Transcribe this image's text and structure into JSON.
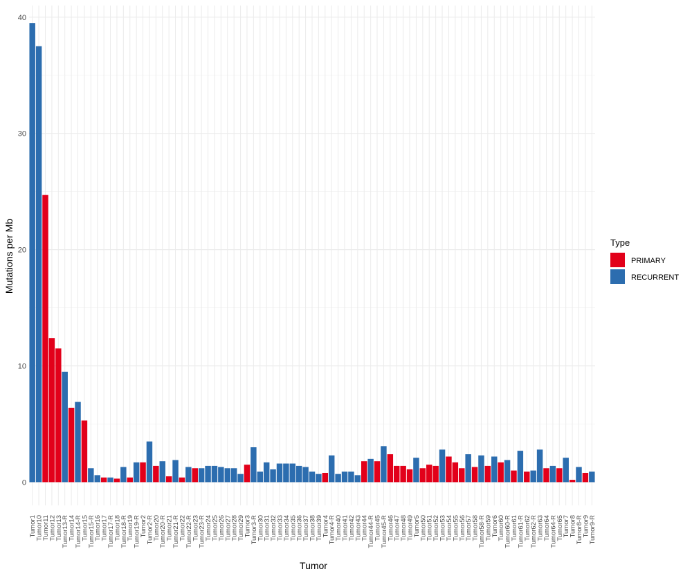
{
  "chart_data": {
    "type": "bar",
    "title": "",
    "xlabel": "Tumor",
    "ylabel": "Mutations per Mb",
    "ylim": [
      -2,
      41
    ],
    "yticks": [
      0,
      10,
      20,
      30,
      40
    ],
    "grid": true,
    "legend": {
      "title": "Type",
      "placement": "right",
      "entries": [
        {
          "label": "PRIMARY",
          "color": "#E2001A"
        },
        {
          "label": "RECURRENT",
          "color": "#2C6DAF"
        }
      ]
    },
    "categories": [
      "Tumor1",
      "Tumor10",
      "Tumor11",
      "Tumor12",
      "Tumor13",
      "Tumor13-R",
      "Tumor14",
      "Tumor14-R",
      "Tumor15",
      "Tumor15-R",
      "Tumor16",
      "Tumor17",
      "Tumor17-R",
      "Tumor18",
      "Tumor18-R",
      "Tumor19",
      "Tumor19-R",
      "Tumor2",
      "Tumor2-R",
      "Tumor20",
      "Tumor20-R",
      "Tumor21",
      "Tumor21-R",
      "Tumor22",
      "Tumor22-R",
      "Tumor23",
      "Tumor23-R",
      "Tumor24",
      "Tumor25",
      "Tumor26",
      "Tumor27",
      "Tumor28",
      "Tumor29",
      "Tumor3",
      "Tumor3-R",
      "Tumor30",
      "Tumor31",
      "Tumor32",
      "Tumor33",
      "Tumor34",
      "Tumor35",
      "Tumor36",
      "Tumor37",
      "Tumor38",
      "Tumor39",
      "Tumor4",
      "Tumor4-R",
      "Tumor40",
      "Tumor41",
      "Tumor42",
      "Tumor43",
      "Tumor44",
      "Tumor44-R",
      "Tumor45",
      "Tumor45-R",
      "Tumor46",
      "Tumor47",
      "Tumor48",
      "Tumor49",
      "Tumor5",
      "Tumor50",
      "Tumor51",
      "Tumor52",
      "Tumor53",
      "Tumor54",
      "Tumor55",
      "Tumor56",
      "Tumor57",
      "Tumor58",
      "Tumor58-R",
      "Tumor59",
      "Tumor6",
      "Tumor60",
      "Tumor60-R",
      "Tumor61",
      "Tumor61-R",
      "Tumor62",
      "Tumor62-R",
      "Tumor63",
      "Tumor64",
      "Tumor64-R",
      "Tumor65",
      "Tumor7",
      "Tumor8",
      "Tumor8-R",
      "Tumor9",
      "Tumor9-R"
    ],
    "values": [
      39.5,
      37.5,
      24.7,
      12.4,
      11.5,
      9.5,
      6.4,
      6.9,
      5.3,
      1.2,
      0.6,
      0.4,
      0.4,
      0.3,
      1.3,
      0.4,
      1.7,
      1.7,
      3.5,
      1.4,
      1.8,
      0.5,
      1.9,
      0.4,
      1.3,
      1.2,
      1.2,
      1.4,
      1.4,
      1.3,
      1.2,
      1.2,
      0.7,
      1.5,
      3.0,
      0.9,
      1.7,
      1.1,
      1.6,
      1.6,
      1.6,
      1.4,
      1.3,
      0.9,
      0.7,
      0.8,
      2.3,
      0.7,
      0.9,
      0.9,
      0.6,
      1.8,
      2.0,
      1.8,
      3.1,
      2.4,
      1.4,
      1.4,
      1.1,
      2.1,
      1.2,
      1.5,
      1.4,
      2.8,
      2.2,
      1.7,
      1.2,
      2.4,
      1.3,
      2.3,
      1.4,
      2.2,
      1.7,
      1.9,
      1.0,
      2.7,
      0.9,
      1.0,
      2.8,
      1.2,
      1.4,
      1.2,
      2.1,
      0.2,
      1.3,
      0.8,
      0.9
    ],
    "types": [
      "RECURRENT",
      "RECURRENT",
      "PRIMARY",
      "PRIMARY",
      "PRIMARY",
      "RECURRENT",
      "PRIMARY",
      "RECURRENT",
      "PRIMARY",
      "RECURRENT",
      "RECURRENT",
      "PRIMARY",
      "RECURRENT",
      "PRIMARY",
      "RECURRENT",
      "PRIMARY",
      "RECURRENT",
      "PRIMARY",
      "RECURRENT",
      "PRIMARY",
      "RECURRENT",
      "PRIMARY",
      "RECURRENT",
      "PRIMARY",
      "RECURRENT",
      "PRIMARY",
      "RECURRENT",
      "RECURRENT",
      "RECURRENT",
      "RECURRENT",
      "RECURRENT",
      "RECURRENT",
      "RECURRENT",
      "PRIMARY",
      "RECURRENT",
      "RECURRENT",
      "RECURRENT",
      "RECURRENT",
      "RECURRENT",
      "RECURRENT",
      "RECURRENT",
      "RECURRENT",
      "RECURRENT",
      "RECURRENT",
      "RECURRENT",
      "PRIMARY",
      "RECURRENT",
      "RECURRENT",
      "RECURRENT",
      "RECURRENT",
      "RECURRENT",
      "PRIMARY",
      "RECURRENT",
      "PRIMARY",
      "RECURRENT",
      "PRIMARY",
      "PRIMARY",
      "PRIMARY",
      "PRIMARY",
      "RECURRENT",
      "PRIMARY",
      "PRIMARY",
      "PRIMARY",
      "RECURRENT",
      "PRIMARY",
      "PRIMARY",
      "PRIMARY",
      "RECURRENT",
      "PRIMARY",
      "RECURRENT",
      "PRIMARY",
      "RECURRENT",
      "PRIMARY",
      "RECURRENT",
      "PRIMARY",
      "RECURRENT",
      "PRIMARY",
      "RECURRENT",
      "RECURRENT",
      "PRIMARY",
      "RECURRENT",
      "PRIMARY",
      "RECURRENT",
      "PRIMARY",
      "RECURRENT",
      "PRIMARY",
      "RECURRENT"
    ]
  }
}
